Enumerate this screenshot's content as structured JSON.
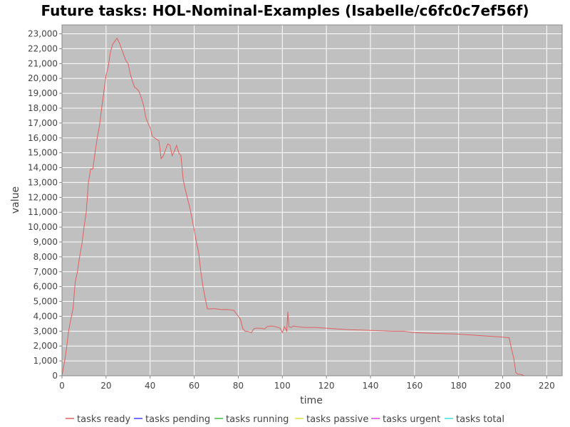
{
  "chart_data": {
    "type": "line",
    "title": "Future tasks: HOL-Nominal-Examples (Isabelle/c6fc0c7ef56f)",
    "xlabel": "time",
    "ylabel": "value",
    "xlim": [
      0,
      227
    ],
    "ylim": [
      0,
      23600
    ],
    "xticks": [
      0,
      20,
      40,
      60,
      80,
      100,
      120,
      140,
      160,
      180,
      200,
      220
    ],
    "xtick_labels": [
      "0",
      "20",
      "40",
      "60",
      "80",
      "100",
      "120",
      "140",
      "160",
      "180",
      "200",
      "220"
    ],
    "yticks": [
      0,
      1000,
      2000,
      3000,
      4000,
      5000,
      6000,
      7000,
      8000,
      9000,
      10000,
      11000,
      12000,
      13000,
      14000,
      15000,
      16000,
      17000,
      18000,
      19000,
      20000,
      21000,
      22000,
      23000
    ],
    "ytick_labels": [
      "0",
      "1,000",
      "2,000",
      "3,000",
      "4,000",
      "5,000",
      "6,000",
      "7,000",
      "8,000",
      "9,000",
      "10,000",
      "11,000",
      "12,000",
      "13,000",
      "14,000",
      "15,000",
      "16,000",
      "17,000",
      "18,000",
      "19,000",
      "20,000",
      "21,000",
      "22,000",
      "23,000"
    ],
    "grid": true,
    "legend_position": "bottom",
    "plot_background": "#c0c0c0",
    "series": [
      {
        "name": "tasks ready",
        "color": "#e06060",
        "x": [
          0,
          1,
          2,
          3,
          4,
          5,
          6,
          7,
          8,
          9,
          10,
          11,
          12,
          13,
          14,
          15,
          16,
          17,
          18,
          19,
          20,
          21,
          22,
          23,
          24,
          25,
          26,
          27,
          28,
          29,
          30,
          31,
          32,
          33,
          34,
          35,
          36,
          37,
          38,
          39,
          40,
          41,
          42,
          43,
          44,
          45,
          46,
          47,
          48,
          49,
          50,
          51,
          52,
          53,
          54,
          55,
          56,
          57,
          58,
          59,
          60,
          61,
          62,
          63,
          64,
          65,
          66,
          67,
          68,
          69,
          70,
          71,
          72,
          75,
          78,
          81,
          82,
          83,
          84,
          85,
          86,
          87,
          88,
          90,
          92,
          93,
          95,
          97,
          99,
          100,
          101,
          102,
          102.5,
          103,
          104,
          105,
          107,
          110,
          115,
          120,
          125,
          130,
          140,
          150,
          155,
          160,
          170,
          180,
          185,
          190,
          195,
          200,
          203,
          204,
          205,
          206,
          207,
          208,
          210,
          213,
          216,
          217
        ],
        "y": [
          0,
          800,
          1800,
          3000,
          3800,
          4500,
          6300,
          7000,
          8000,
          8800,
          10000,
          11000,
          13000,
          13900,
          13900,
          15000,
          16000,
          16800,
          18000,
          19100,
          20200,
          20800,
          21800,
          22300,
          22500,
          22700,
          22400,
          22000,
          21600,
          21200,
          21000,
          20300,
          19800,
          19400,
          19300,
          19100,
          18700,
          18200,
          17400,
          17000,
          16700,
          16100,
          16000,
          15900,
          15800,
          14600,
          14800,
          15200,
          15600,
          15500,
          14800,
          15100,
          15500,
          15000,
          14800,
          13200,
          12500,
          11900,
          11300,
          10600,
          9800,
          9000,
          8300,
          7000,
          6000,
          5200,
          4500,
          4500,
          4500,
          4520,
          4500,
          4480,
          4450,
          4460,
          4400,
          3800,
          3200,
          3000,
          3000,
          2950,
          2900,
          3150,
          3200,
          3200,
          3150,
          3300,
          3350,
          3300,
          3200,
          2900,
          3300,
          3000,
          4300,
          3300,
          3250,
          3350,
          3300,
          3250,
          3250,
          3200,
          3150,
          3100,
          3050,
          3000,
          3000,
          2900,
          2850,
          2800,
          2750,
          2700,
          2650,
          2600,
          2550,
          1800,
          1200,
          200,
          100,
          100,
          0,
          0,
          0,
          0
        ]
      },
      {
        "name": "tasks pending",
        "color": "#4040ff",
        "x": [
          0,
          217
        ],
        "y": [
          0,
          0
        ]
      },
      {
        "name": "tasks running",
        "color": "#40c040",
        "x": [],
        "y": []
      },
      {
        "name": "tasks passive",
        "color": "#e0e040",
        "x": [],
        "y": []
      },
      {
        "name": "tasks urgent",
        "color": "#e040e0",
        "x": [],
        "y": []
      },
      {
        "name": "tasks total",
        "color": "#40e0e0",
        "x": [],
        "y": []
      }
    ]
  }
}
